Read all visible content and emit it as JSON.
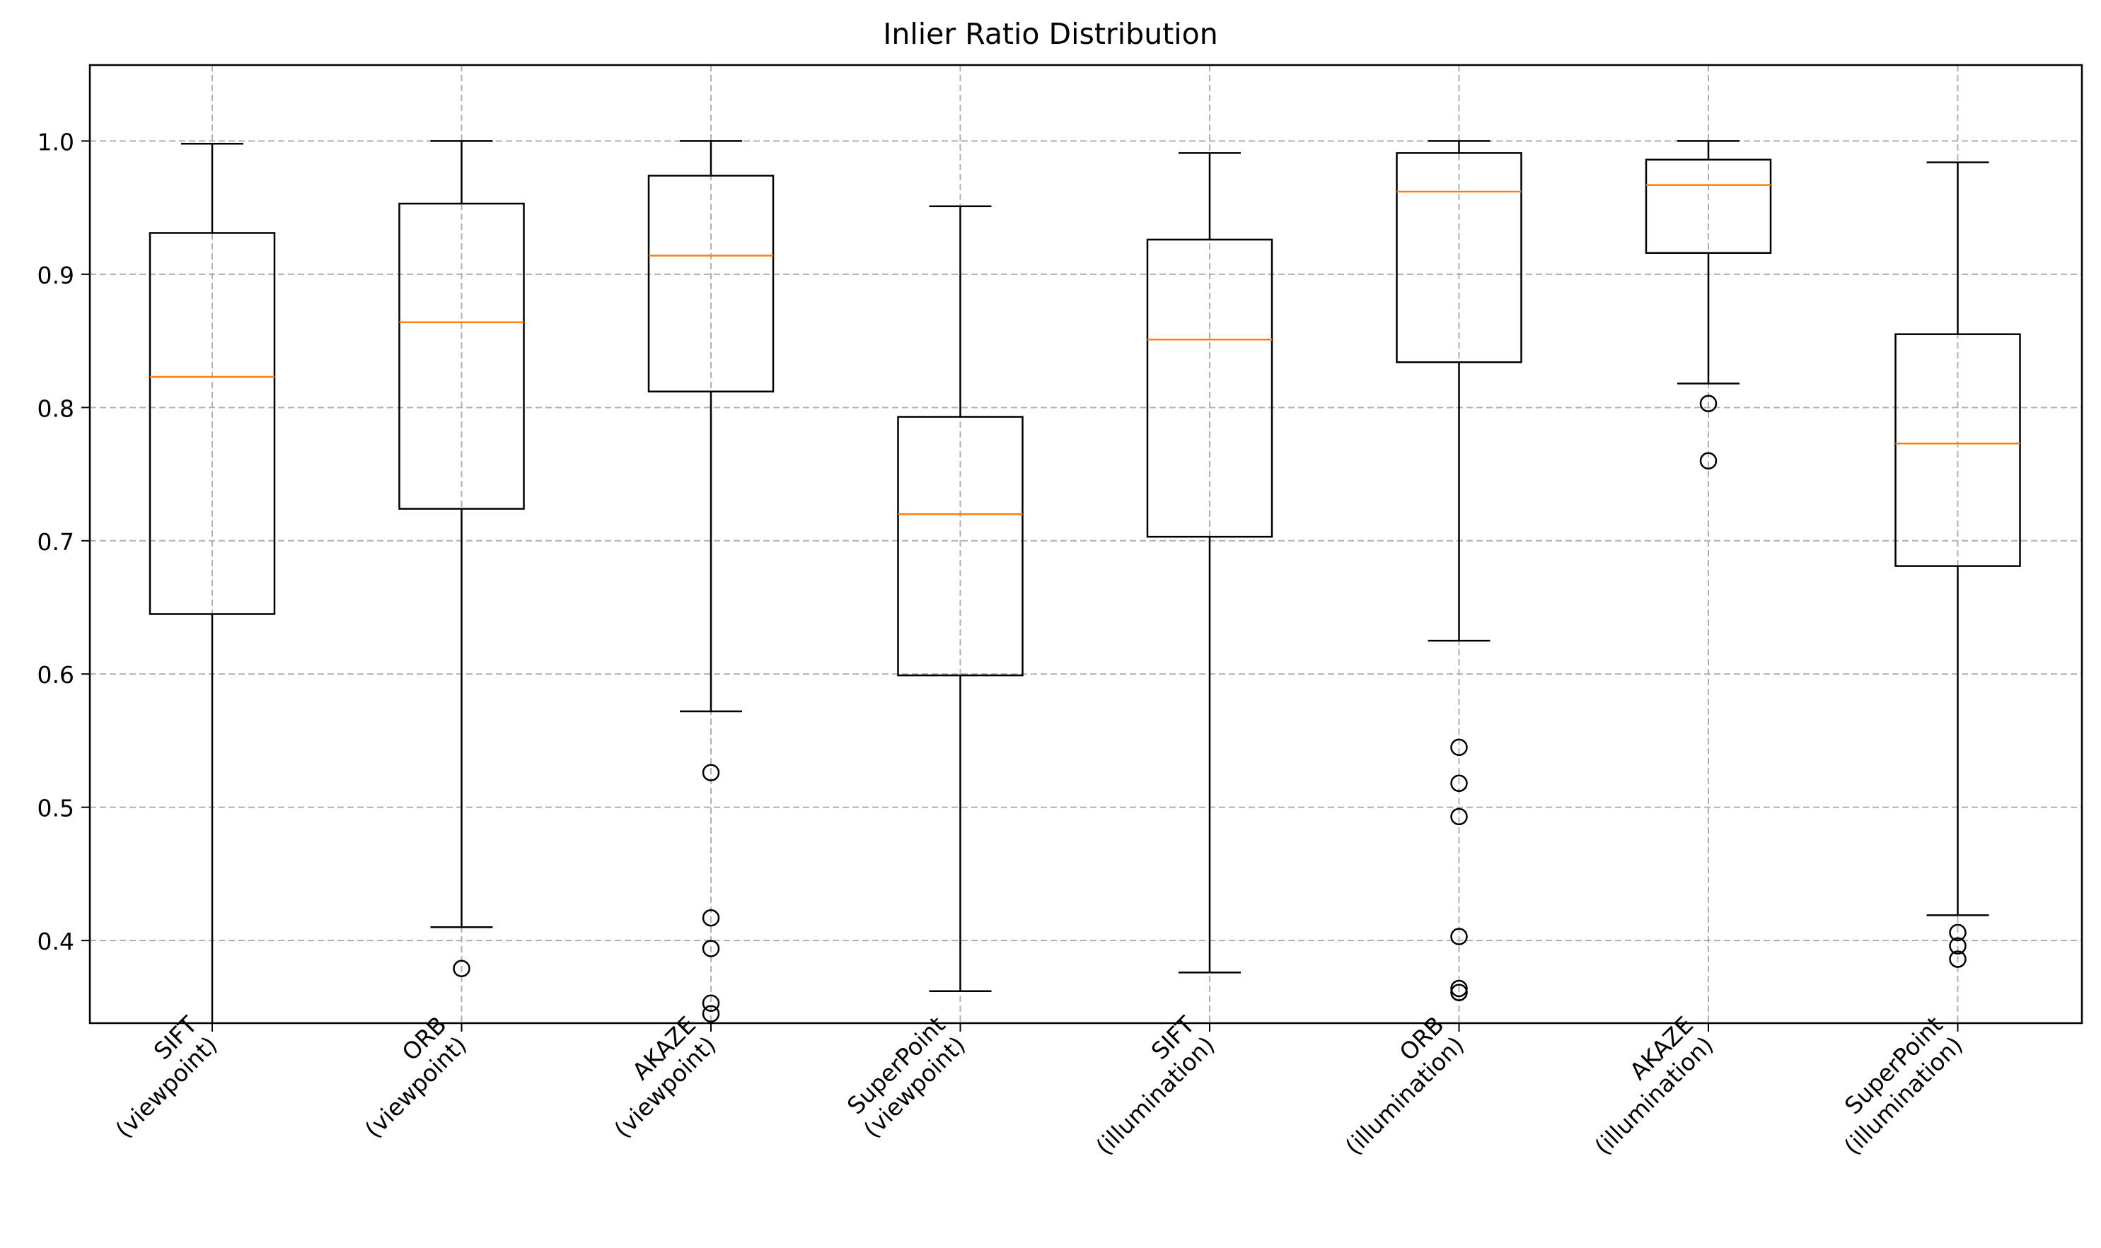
{
  "chart_data": {
    "type": "box",
    "title": "Inlier Ratio Distribution",
    "xlabel": "",
    "ylabel": "",
    "ylim": [
      0.338,
      1.057
    ],
    "yticks": [
      "0.4",
      "0.5",
      "0.6",
      "0.7",
      "0.8",
      "0.9",
      "1.0"
    ],
    "ytick_values": [
      0.4,
      0.5,
      0.6,
      0.7,
      0.8,
      0.9,
      1.0
    ],
    "grid": true,
    "categories": [
      {
        "line1": "SIFT",
        "line2": "(viewpoint)"
      },
      {
        "line1": "ORB",
        "line2": "(viewpoint)"
      },
      {
        "line1": "AKAZE",
        "line2": "(viewpoint)"
      },
      {
        "line1": "SuperPoint",
        "line2": "(viewpoint)"
      },
      {
        "line1": "SIFT",
        "line2": "(illumination)"
      },
      {
        "line1": "ORB",
        "line2": "(illumination)"
      },
      {
        "line1": "AKAZE",
        "line2": "(illumination)"
      },
      {
        "line1": "SuperPoint",
        "line2": "(illumination)"
      }
    ],
    "boxes": [
      {
        "whisker_low": 0.3,
        "q1": 0.645,
        "median": 0.823,
        "q3": 0.931,
        "whisker_high": 0.998,
        "outliers": []
      },
      {
        "whisker_low": 0.41,
        "q1": 0.724,
        "median": 0.864,
        "q3": 0.953,
        "whisker_high": 1.0,
        "outliers": [
          0.379
        ]
      },
      {
        "whisker_low": 0.572,
        "q1": 0.812,
        "median": 0.914,
        "q3": 0.974,
        "whisker_high": 1.0,
        "outliers": [
          0.526,
          0.417,
          0.394,
          0.353,
          0.345
        ]
      },
      {
        "whisker_low": 0.362,
        "q1": 0.599,
        "median": 0.72,
        "q3": 0.793,
        "whisker_high": 0.951,
        "outliers": []
      },
      {
        "whisker_low": 0.376,
        "q1": 0.703,
        "median": 0.851,
        "q3": 0.926,
        "whisker_high": 0.991,
        "outliers": []
      },
      {
        "whisker_low": 0.625,
        "q1": 0.834,
        "median": 0.962,
        "q3": 0.991,
        "whisker_high": 1.0,
        "outliers": [
          0.545,
          0.518,
          0.493,
          0.403,
          0.364,
          0.361
        ]
      },
      {
        "whisker_low": 0.818,
        "q1": 0.916,
        "median": 0.967,
        "q3": 0.986,
        "whisker_high": 1.0,
        "outliers": [
          0.803,
          0.76
        ]
      },
      {
        "whisker_low": 0.419,
        "q1": 0.681,
        "median": 0.773,
        "q3": 0.855,
        "whisker_high": 0.984,
        "outliers": [
          0.406,
          0.396,
          0.386
        ]
      }
    ],
    "colors": {
      "box": "#000000",
      "median": "#ff7f0e",
      "grid": "#b0b0b0"
    }
  }
}
